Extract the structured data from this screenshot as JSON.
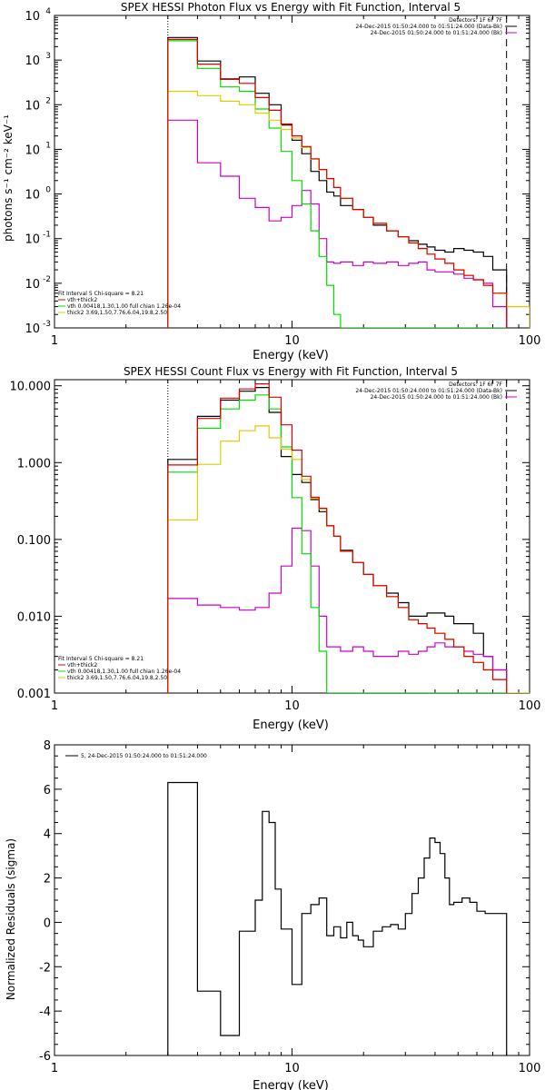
{
  "colors": {
    "data": "#000000",
    "bkg": "#cc00cc",
    "vth": "#00dd00",
    "thick": "#ddcc00",
    "total": "#dd0000"
  },
  "chart_data": [
    {
      "type": "line",
      "title": "SPEX HESSI Photon Flux vs Energy with Fit Function, Interval 5",
      "xlabel": "Energy (keV)",
      "ylabel": "photons s⁻¹ cm⁻² keV⁻¹",
      "xscale": "log",
      "yscale": "log",
      "xlim": [
        1,
        100
      ],
      "ylim": [
        0.001,
        10000
      ],
      "xticks": [
        {
          "v": 1,
          "label": "1"
        },
        {
          "v": 10,
          "label": "10"
        },
        {
          "v": 100,
          "label": "100"
        }
      ],
      "yticks": [
        {
          "v": 0.001,
          "m": "10",
          "e": "-3"
        },
        {
          "v": 0.01,
          "m": "10",
          "e": "-2"
        },
        {
          "v": 0.1,
          "m": "10",
          "e": "-1"
        },
        {
          "v": 1,
          "m": "10",
          "e": "0"
        },
        {
          "v": 10,
          "m": "10",
          "e": "1"
        },
        {
          "v": 100,
          "m": "10",
          "e": "2"
        },
        {
          "v": 1000,
          "m": "10",
          "e": "3"
        },
        {
          "v": 10000,
          "m": "10",
          "e": "4"
        }
      ],
      "vlines_dotted": [
        3
      ],
      "vlines_dashed": [
        80
      ],
      "legend_right": [
        "Detectors: 1F 6F 7F",
        "24-Dec-2015 01:50:24.000 to 01:51:24.000 (Data-Bk)",
        "24-Dec-2015 01:50:24.000 to 01:51:24.000 (Bk)"
      ],
      "legend_left": [
        "Fit Interval 5   Chi-square = 8.21",
        "vth+thick2",
        "vth 0.00418,1.30,1.00  full chian 1.26e-04",
        "thick2 3.69,1.50,7.76,6.04,19.8,2.50"
      ],
      "edges": [
        3,
        4,
        5,
        6,
        7,
        8,
        9,
        10,
        11,
        12,
        13,
        14,
        15,
        16,
        18,
        20,
        22,
        25,
        28,
        31,
        34,
        37,
        40,
        44,
        48,
        53,
        58,
        64,
        70,
        80,
        100
      ],
      "series": [
        {
          "name": "Data-Bk",
          "colorKey": "data",
          "bins": 29,
          "values": [
            3200,
            950,
            380,
            420,
            180,
            100,
            35,
            16,
            8,
            3.2,
            2.0,
            1.1,
            0.9,
            0.55,
            0.45,
            0.3,
            0.2,
            0.15,
            0.11,
            0.09,
            0.075,
            0.065,
            0.055,
            0.05,
            0.06,
            0.055,
            0.05,
            0.04,
            0.02
          ]
        },
        {
          "name": "Bk",
          "colorKey": "bkg",
          "bins": 29,
          "values": [
            45,
            5,
            2.5,
            0.8,
            0.5,
            0.25,
            0.3,
            0.55,
            1.2,
            0.6,
            0.1,
            0.03,
            0.028,
            0.03,
            0.025,
            0.03,
            0.028,
            0.03,
            0.025,
            0.028,
            0.03,
            0.02,
            0.018,
            0.018,
            0.016,
            0.013,
            0.012,
            0.01,
            0.003
          ]
        },
        {
          "name": "vth",
          "colorKey": "vth",
          "bins": 29,
          "values": [
            2700,
            650,
            250,
            200,
            80,
            30,
            9,
            2.0,
            0.6,
            0.15,
            0.04,
            0.009,
            0.002,
            0.0008,
            0.0001,
            0.0001,
            0.0001,
            0.0001,
            0.0001,
            0.0001,
            0.0001,
            0.0001,
            0.0001,
            0.0001,
            0.0001,
            0.0001,
            0.0001,
            0.0001,
            0.0001
          ]
        },
        {
          "name": "thick2",
          "colorKey": "thick",
          "bins": 30,
          "values": [
            200,
            160,
            120,
            100,
            65,
            45,
            28,
            18,
            11,
            6,
            3.5,
            2.2,
            1.4,
            0.8,
            0.45,
            0.3,
            0.22,
            0.15,
            0.11,
            0.08,
            0.06,
            0.045,
            0.035,
            0.028,
            0.02,
            0.015,
            0.012,
            0.009,
            0.006,
            0.003
          ]
        },
        {
          "name": "vth+thick2",
          "colorKey": "total",
          "bins": 29,
          "values": [
            2900,
            810,
            370,
            300,
            145,
            75,
            37,
            20,
            11.6,
            6.15,
            3.54,
            2.21,
            1.4,
            0.8,
            0.45,
            0.3,
            0.22,
            0.15,
            0.11,
            0.08,
            0.06,
            0.045,
            0.035,
            0.028,
            0.02,
            0.015,
            0.012,
            0.009,
            0.006
          ]
        }
      ]
    },
    {
      "type": "line",
      "title": "SPEX HESSI Count Flux vs Energy with Fit Function, Interval 5",
      "xlabel": "Energy (keV)",
      "ylabel": "",
      "xscale": "log",
      "yscale": "log",
      "xlim": [
        1,
        100
      ],
      "ylim": [
        0.001,
        12
      ],
      "xticks": [
        {
          "v": 1,
          "label": "1"
        },
        {
          "v": 10,
          "label": "10"
        },
        {
          "v": 100,
          "label": "100"
        }
      ],
      "yticks": [
        {
          "v": 0.001,
          "label": "0.001"
        },
        {
          "v": 0.01,
          "label": "0.010"
        },
        {
          "v": 0.1,
          "label": "0.100"
        },
        {
          "v": 1,
          "label": "1.000"
        },
        {
          "v": 10,
          "label": "10.000"
        }
      ],
      "vlines_dotted": [
        3
      ],
      "vlines_dashed": [
        80
      ],
      "legend_right": [
        "Detectors: 1F 6F 7F",
        "24-Dec-2015 01:50:24.000 to 01:51:24.000 (Data-Bk)",
        "24-Dec-2015 01:50:24.000 to 01:51:24.000 (Bk)"
      ],
      "legend_left": [
        "Fit Interval 5   Chi-square = 8.21",
        "vth+thick2",
        "vth 0.00418,1.30,1.00  full chian 1.26e-04",
        "thick2 3.69,1.50,7.76,6.04,19.8,2.50"
      ],
      "edges": [
        3,
        4,
        5,
        6,
        7,
        8,
        9,
        10,
        11,
        12,
        13,
        14,
        15,
        16,
        18,
        20,
        22,
        25,
        28,
        31,
        34,
        37,
        40,
        44,
        48,
        53,
        58,
        64,
        70,
        80,
        100
      ],
      "series": [
        {
          "name": "Data-Bk",
          "colorKey": "data",
          "bins": 29,
          "values": [
            1.1,
            4.0,
            6.5,
            8.5,
            9.5,
            4.5,
            1.2,
            0.7,
            0.55,
            0.33,
            0.23,
            0.15,
            0.11,
            0.072,
            0.05,
            0.035,
            0.025,
            0.02,
            0.015,
            0.01,
            0.01,
            0.011,
            0.011,
            0.01,
            0.008,
            0.008,
            0.006,
            0.003,
            0.002
          ]
        },
        {
          "name": "Bk",
          "colorKey": "bkg",
          "bins": 29,
          "values": [
            0.017,
            0.014,
            0.013,
            0.012,
            0.013,
            0.02,
            0.045,
            0.14,
            0.13,
            0.045,
            0.01,
            0.004,
            0.004,
            0.0035,
            0.004,
            0.0035,
            0.003,
            0.003,
            0.0035,
            0.0032,
            0.0035,
            0.004,
            0.0045,
            0.004,
            0.004,
            0.0035,
            0.0032,
            0.003,
            0.002
          ]
        },
        {
          "name": "vth",
          "colorKey": "vth",
          "bins": 29,
          "values": [
            0.75,
            2.8,
            5.0,
            6.5,
            7.6,
            5.0,
            1.6,
            0.35,
            0.065,
            0.013,
            0.0035,
            0.001,
            0.0003,
            0.0001,
            0.0001,
            0.0001,
            0.0001,
            0.0001,
            0.0001,
            0.0001,
            0.0001,
            0.0001,
            0.0001,
            0.0001,
            0.0001,
            0.0001,
            0.0001,
            0.0001,
            0.0001
          ]
        },
        {
          "name": "thick2",
          "colorKey": "thick",
          "bins": 30,
          "values": [
            0.18,
            0.95,
            1.9,
            2.6,
            3.0,
            2.1,
            1.5,
            1.1,
            0.6,
            0.34,
            0.25,
            0.15,
            0.11,
            0.07,
            0.05,
            0.035,
            0.025,
            0.018,
            0.013,
            0.009,
            0.008,
            0.007,
            0.006,
            0.005,
            0.004,
            0.003,
            0.0025,
            0.002,
            0.0015,
            0.0008
          ]
        },
        {
          "name": "vth+thick2",
          "colorKey": "total",
          "bins": 29,
          "values": [
            0.93,
            3.75,
            6.9,
            9.1,
            10.6,
            7.1,
            3.1,
            1.45,
            0.665,
            0.353,
            0.254,
            0.151,
            0.11,
            0.07,
            0.05,
            0.035,
            0.025,
            0.018,
            0.013,
            0.009,
            0.008,
            0.007,
            0.006,
            0.005,
            0.004,
            0.003,
            0.0025,
            0.002,
            0.0015
          ]
        }
      ]
    },
    {
      "type": "line",
      "title": "",
      "xlabel": "Energy (keV)",
      "ylabel": "Normalized Residuals (sigma)",
      "xscale": "log",
      "yscale": "linear",
      "xlim": [
        1,
        100
      ],
      "ylim": [
        -6,
        8
      ],
      "xticks": [
        {
          "v": 1,
          "label": "1"
        },
        {
          "v": 10,
          "label": "10"
        },
        {
          "v": 100,
          "label": "100"
        }
      ],
      "yticks": [
        {
          "v": -6,
          "label": "-6"
        },
        {
          "v": -4,
          "label": "-4"
        },
        {
          "v": -2,
          "label": "-2"
        },
        {
          "v": 0,
          "label": "0"
        },
        {
          "v": 2,
          "label": "2"
        },
        {
          "v": 4,
          "label": "4"
        },
        {
          "v": 6,
          "label": "6"
        },
        {
          "v": 8,
          "label": "8"
        }
      ],
      "legend_right": [],
      "legend_left": [],
      "legend_top": "5, 24-Dec-2015 01:50:24.000 to 01:51:24.000",
      "edges": [
        3,
        4,
        5,
        6,
        7,
        7.5,
        8,
        8.5,
        9,
        10,
        11,
        12,
        13,
        14,
        15,
        16,
        17,
        18,
        19,
        20,
        22,
        24,
        26,
        28,
        30,
        32,
        34,
        36,
        38,
        40,
        42,
        44,
        46,
        48,
        52,
        56,
        60,
        65,
        70,
        80
      ],
      "series": [
        {
          "name": "residuals",
          "colorKey": "data",
          "bins": 39,
          "baseline": -6,
          "values": [
            6.3,
            -3.1,
            -5.1,
            -0.4,
            1.0,
            5.0,
            4.5,
            1.5,
            -0.3,
            -2.8,
            0.4,
            0.8,
            1.1,
            -0.6,
            -0.2,
            -0.7,
            0.0,
            -0.6,
            -0.8,
            -1.1,
            -0.4,
            -0.2,
            -0.1,
            -0.3,
            0.4,
            1.3,
            2.0,
            2.9,
            3.8,
            3.6,
            3.1,
            2.0,
            0.8,
            0.9,
            1.1,
            0.9,
            0.5,
            0.4,
            0.4
          ]
        }
      ]
    }
  ]
}
